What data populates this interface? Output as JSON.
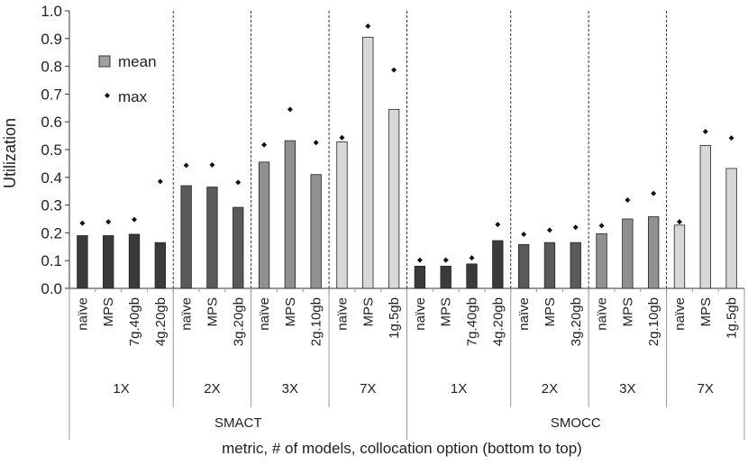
{
  "chart_data": {
    "type": "bar",
    "title": "",
    "ylabel": "Utilization",
    "xlabel": "metric, # of models, collocation option (bottom to top)",
    "ylim": [
      0,
      1.0
    ],
    "yticks": [
      "0.0",
      "0.1",
      "0.2",
      "0.3",
      "0.4",
      "0.5",
      "0.6",
      "0.7",
      "0.8",
      "0.9",
      "1.0"
    ],
    "legend": {
      "placement": "top-left",
      "mean_label": "mean",
      "max_label": "max"
    },
    "series": [
      {
        "name": "mean",
        "marker": "bar"
      },
      {
        "name": "max",
        "marker": "diamond"
      }
    ],
    "metrics": [
      {
        "name": "SMACT",
        "groups": [
          {
            "label": "1X",
            "color": "#3a3a3a",
            "bars": [
              {
                "option": "naïve",
                "mean": 0.19,
                "max": 0.235
              },
              {
                "option": "MPS",
                "mean": 0.19,
                "max": 0.24
              },
              {
                "option": "7g.40gb",
                "mean": 0.195,
                "max": 0.248
              },
              {
                "option": "4g.20gb",
                "mean": 0.165,
                "max": 0.385
              }
            ]
          },
          {
            "label": "2X",
            "color": "#5a5a5a",
            "bars": [
              {
                "option": "naïve",
                "mean": 0.37,
                "max": 0.443
              },
              {
                "option": "MPS",
                "mean": 0.365,
                "max": 0.445
              },
              {
                "option": "3g.20gb",
                "mean": 0.292,
                "max": 0.382
              }
            ]
          },
          {
            "label": "3X",
            "color": "#909090",
            "bars": [
              {
                "option": "naïve",
                "mean": 0.455,
                "max": 0.517
              },
              {
                "option": "MPS",
                "mean": 0.532,
                "max": 0.645
              },
              {
                "option": "2g.10gb",
                "mean": 0.41,
                "max": 0.525
              }
            ]
          },
          {
            "label": "7X",
            "color": "#d8d8d8",
            "bars": [
              {
                "option": "naïve",
                "mean": 0.528,
                "max": 0.543
              },
              {
                "option": "MPS",
                "mean": 0.905,
                "max": 0.945
              },
              {
                "option": "1g.5gb",
                "mean": 0.645,
                "max": 0.787
              }
            ]
          }
        ]
      },
      {
        "name": "SMOCC",
        "groups": [
          {
            "label": "1X",
            "color": "#3a3a3a",
            "bars": [
              {
                "option": "naïve",
                "mean": 0.08,
                "max": 0.102
              },
              {
                "option": "MPS",
                "mean": 0.08,
                "max": 0.102
              },
              {
                "option": "7g.40gb",
                "mean": 0.088,
                "max": 0.11
              },
              {
                "option": "4g.20gb",
                "mean": 0.172,
                "max": 0.23
              }
            ]
          },
          {
            "label": "2X",
            "color": "#5a5a5a",
            "bars": [
              {
                "option": "naïve",
                "mean": 0.158,
                "max": 0.195
              },
              {
                "option": "MPS",
                "mean": 0.165,
                "max": 0.21
              },
              {
                "option": "3g.20gb",
                "mean": 0.165,
                "max": 0.22
              }
            ]
          },
          {
            "label": "3X",
            "color": "#909090",
            "bars": [
              {
                "option": "naïve",
                "mean": 0.197,
                "max": 0.226
              },
              {
                "option": "MPS",
                "mean": 0.25,
                "max": 0.318
              },
              {
                "option": "2g.10gb",
                "mean": 0.258,
                "max": 0.342
              }
            ]
          },
          {
            "label": "7X",
            "color": "#d8d8d8",
            "bars": [
              {
                "option": "naïve",
                "mean": 0.228,
                "max": 0.24
              },
              {
                "option": "MPS",
                "mean": 0.515,
                "max": 0.565
              },
              {
                "option": "1g.5gb",
                "mean": 0.432,
                "max": 0.542
              }
            ]
          }
        ]
      }
    ]
  }
}
